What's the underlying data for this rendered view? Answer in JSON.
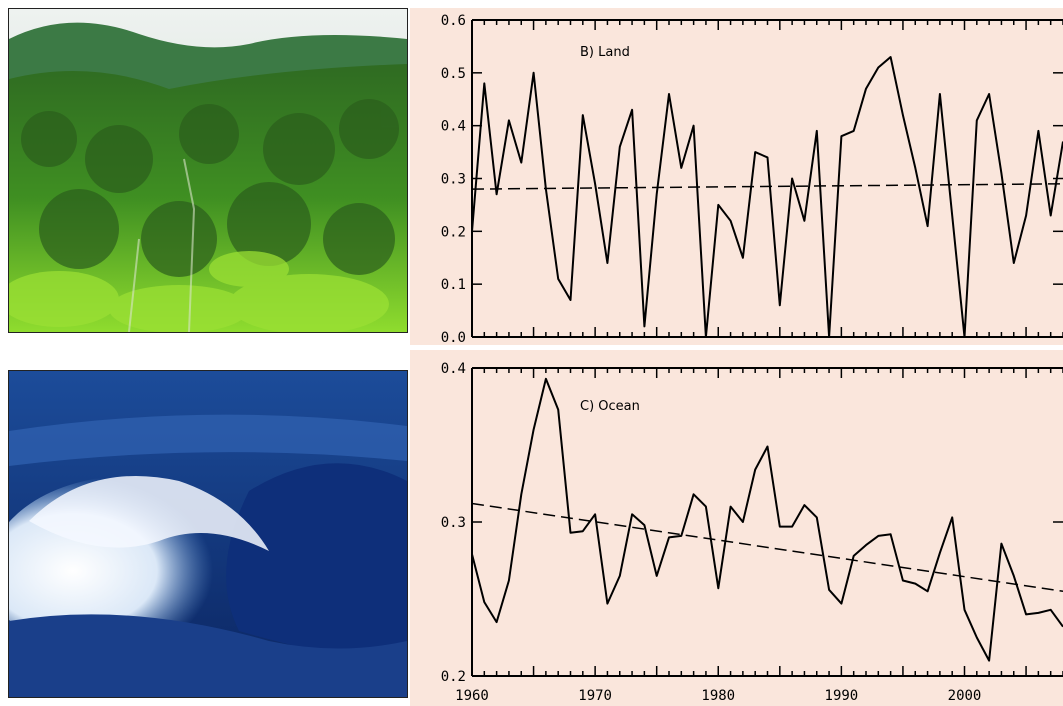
{
  "colors": {
    "panel_bg": "#fae6dc",
    "line": "#000000",
    "forest_dark": "#1f4d1a",
    "forest_light": "#7ed02a",
    "ocean_dark": "#0d2a6b",
    "ocean_light": "#4a7fc4"
  },
  "photos": [
    {
      "subject": "tropical rainforest"
    },
    {
      "subject": "breaking ocean wave"
    }
  ],
  "chart_data": [
    {
      "type": "line",
      "title": "B) Land",
      "xlabel": "",
      "ylabel": "",
      "xlim": [
        1960,
        2008
      ],
      "ylim": [
        0.0,
        0.6
      ],
      "y_ticks": [
        0.0,
        0.1,
        0.2,
        0.3,
        0.4,
        0.5,
        0.6
      ],
      "y_tick_labels": [
        "0.0",
        "0.1",
        "0.2",
        "0.3",
        "0.4",
        "0.5",
        "0.6"
      ],
      "grid": false,
      "series": [
        {
          "x": [
            1960,
            1961,
            1962,
            1963,
            1964,
            1965,
            1966,
            1967,
            1968,
            1969,
            1970,
            1971,
            1972,
            1973,
            1974,
            1975,
            1976,
            1977,
            1978,
            1979,
            1980,
            1981,
            1982,
            1983,
            1984,
            1985,
            1986,
            1987,
            1988,
            1989,
            1990,
            1991,
            1992,
            1993,
            1994,
            1995,
            1996,
            1997,
            1998,
            1999,
            2000,
            2001,
            2002,
            2003,
            2004,
            2005,
            2006,
            2007,
            2008
          ],
          "values": [
            0.2,
            0.48,
            0.27,
            0.41,
            0.33,
            0.5,
            0.28,
            0.11,
            0.07,
            0.42,
            0.29,
            0.14,
            0.36,
            0.43,
            0.02,
            0.27,
            0.46,
            0.32,
            0.4,
            0.0,
            0.25,
            0.22,
            0.15,
            0.35,
            0.34,
            0.06,
            0.3,
            0.22,
            0.39,
            0.0,
            0.38,
            0.39,
            0.47,
            0.51,
            0.53,
            0.42,
            0.32,
            0.21,
            0.46,
            0.23,
            0.0,
            0.41,
            0.46,
            0.31,
            0.14,
            0.23,
            0.39,
            0.23,
            0.37
          ]
        },
        {
          "x": [
            1960,
            2008
          ],
          "values": [
            0.28,
            0.29
          ],
          "style": "dashed"
        }
      ]
    },
    {
      "type": "line",
      "title": "C) Ocean",
      "xlabel": "",
      "ylabel": "",
      "xlim": [
        1960,
        2008
      ],
      "ylim": [
        0.2,
        0.4
      ],
      "y_ticks": [
        0.2,
        0.3,
        0.4
      ],
      "y_tick_labels": [
        "0.2",
        "0.3",
        "0.4"
      ],
      "x_ticks": [
        1960,
        1970,
        1980,
        1990,
        2000
      ],
      "x_tick_labels": [
        "1960",
        "1970",
        "1980",
        "1990",
        "2000"
      ],
      "grid": false,
      "series": [
        {
          "x": [
            1960,
            1961,
            1962,
            1963,
            1964,
            1965,
            1966,
            1967,
            1968,
            1969,
            1970,
            1971,
            1972,
            1973,
            1974,
            1975,
            1976,
            1977,
            1978,
            1979,
            1980,
            1981,
            1982,
            1983,
            1984,
            1985,
            1986,
            1987,
            1988,
            1989,
            1990,
            1991,
            1992,
            1993,
            1994,
            1995,
            1996,
            1997,
            1998,
            1999,
            2000,
            2001,
            2002,
            2003,
            2004,
            2005,
            2006,
            2007,
            2008
          ],
          "values": [
            0.279,
            0.248,
            0.235,
            0.262,
            0.318,
            0.36,
            0.393,
            0.373,
            0.293,
            0.294,
            0.305,
            0.247,
            0.265,
            0.305,
            0.298,
            0.265,
            0.29,
            0.291,
            0.318,
            0.31,
            0.257,
            0.31,
            0.3,
            0.334,
            0.349,
            0.297,
            0.297,
            0.311,
            0.303,
            0.256,
            0.247,
            0.278,
            0.285,
            0.291,
            0.292,
            0.262,
            0.26,
            0.255,
            0.28,
            0.303,
            0.243,
            0.225,
            0.21,
            0.286,
            0.265,
            0.24,
            0.241,
            0.243,
            0.232
          ]
        },
        {
          "x": [
            1960,
            2008
          ],
          "values": [
            0.312,
            0.255
          ],
          "style": "dashed"
        }
      ]
    }
  ]
}
